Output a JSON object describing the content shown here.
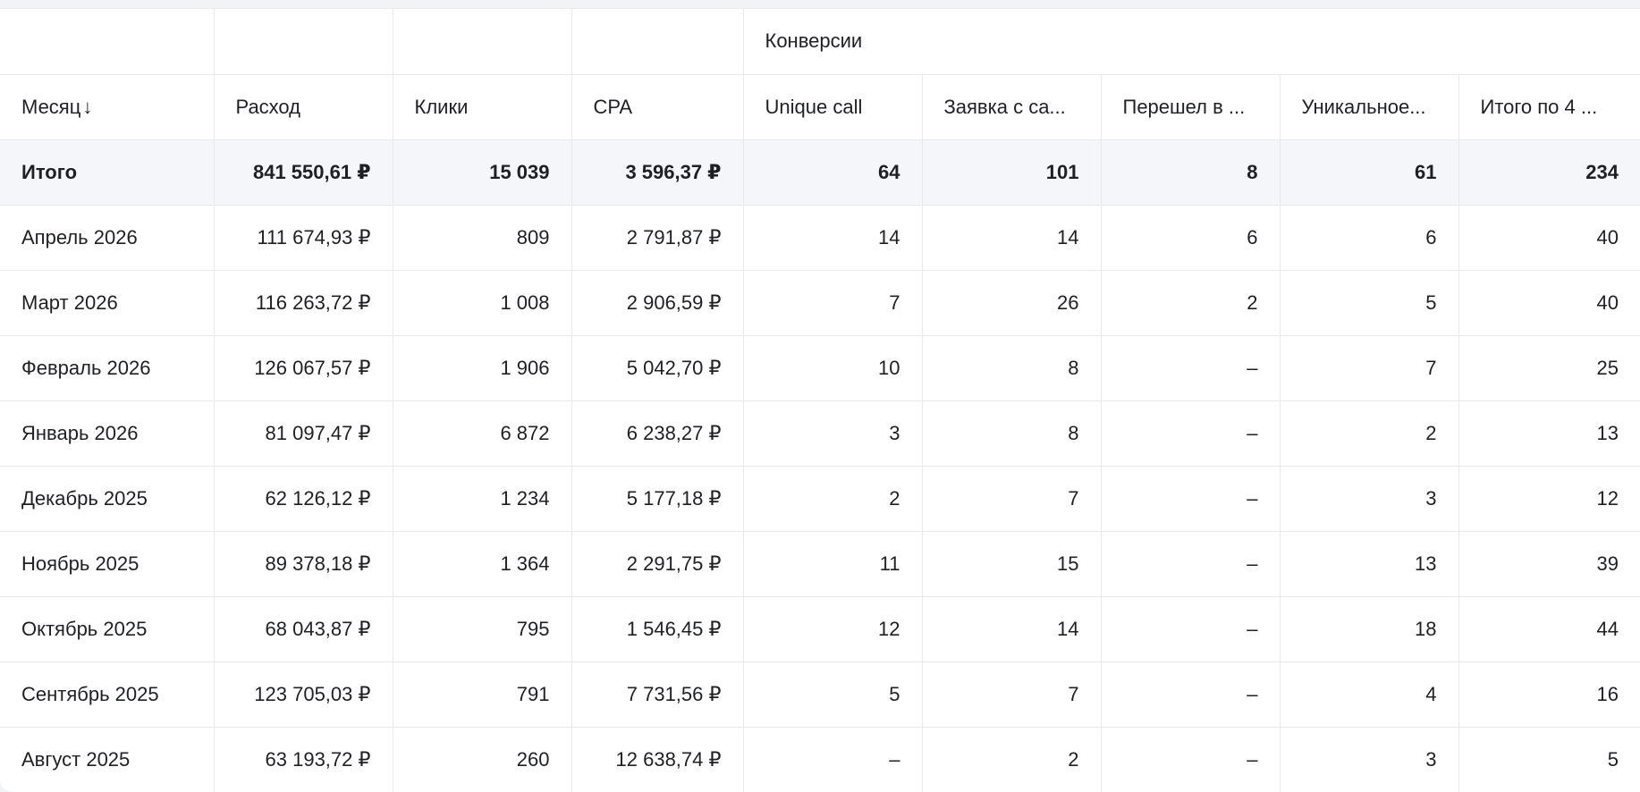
{
  "table": {
    "group_header": "Конверсии",
    "columns": [
      {
        "label": "Месяц",
        "sort_icon": "arrow-down-icon"
      },
      {
        "label": "Расход"
      },
      {
        "label": "Клики"
      },
      {
        "label": "CPA"
      },
      {
        "label": "Unique call"
      },
      {
        "label": "Заявка с са..."
      },
      {
        "label": "Перешел в ..."
      },
      {
        "label": "Уникальное..."
      },
      {
        "label": "Итого по 4 ..."
      }
    ],
    "total": [
      "Итого",
      "841 550,61 ₽",
      "15 039",
      "3 596,37 ₽",
      "64",
      "101",
      "8",
      "61",
      "234"
    ],
    "rows": [
      [
        "Апрель 2026",
        "111 674,93 ₽",
        "809",
        "2 791,87 ₽",
        "14",
        "14",
        "6",
        "6",
        "40"
      ],
      [
        "Март 2026",
        "116 263,72 ₽",
        "1 008",
        "2 906,59 ₽",
        "7",
        "26",
        "2",
        "5",
        "40"
      ],
      [
        "Февраль 2026",
        "126 067,57 ₽",
        "1 906",
        "5 042,70 ₽",
        "10",
        "8",
        "–",
        "7",
        "25"
      ],
      [
        "Январь 2026",
        "81 097,47 ₽",
        "6 872",
        "6 238,27 ₽",
        "3",
        "8",
        "–",
        "2",
        "13"
      ],
      [
        "Декабрь 2025",
        "62 126,12 ₽",
        "1 234",
        "5 177,18 ₽",
        "2",
        "7",
        "–",
        "3",
        "12"
      ],
      [
        "Ноябрь 2025",
        "89 378,18 ₽",
        "1 364",
        "2 291,75 ₽",
        "11",
        "15",
        "–",
        "13",
        "39"
      ],
      [
        "Октябрь 2025",
        "68 043,87 ₽",
        "795",
        "1 546,45 ₽",
        "12",
        "14",
        "–",
        "18",
        "44"
      ],
      [
        "Сентябрь 2025",
        "123 705,03 ₽",
        "791",
        "7 731,56 ₽",
        "5",
        "7",
        "–",
        "4",
        "16"
      ],
      [
        "Август 2025",
        "63 193,72 ₽",
        "260",
        "12 638,74 ₽",
        "–",
        "2",
        "–",
        "3",
        "5"
      ]
    ]
  },
  "colors": {
    "header_text": "#5f6b86",
    "body_text": "#1f2024",
    "total_row_bg": "#f5f6f9",
    "dash": "#9aa3b5",
    "grid_line": "#e8e9ec"
  }
}
